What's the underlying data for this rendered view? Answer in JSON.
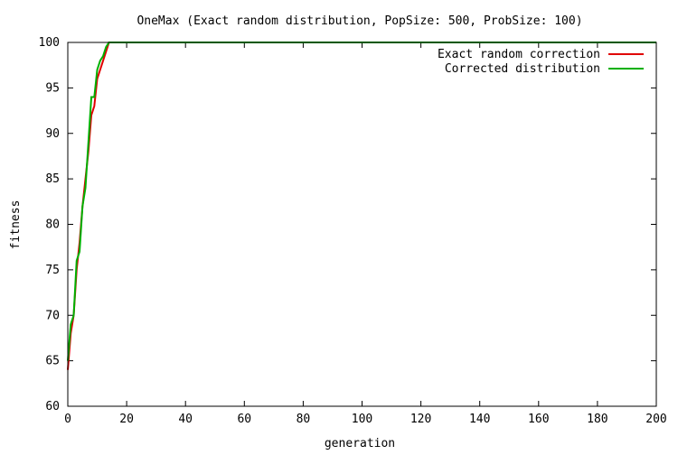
{
  "chart_data": {
    "type": "line",
    "title": "OneMax (Exact random distribution, PopSize: 500, ProbSize: 100)",
    "xlabel": "generation",
    "ylabel": "fitness",
    "xlim": [
      0,
      200
    ],
    "ylim": [
      60,
      100
    ],
    "xticks": [
      0,
      20,
      40,
      60,
      80,
      100,
      120,
      140,
      160,
      180,
      200
    ],
    "yticks": [
      60,
      65,
      70,
      75,
      80,
      85,
      90,
      95,
      100
    ],
    "grid": false,
    "legend_position": "top-right",
    "series": [
      {
        "name": "Exact random correction",
        "color": "#e00000",
        "x": [
          0,
          1,
          2,
          3,
          4,
          5,
          6,
          7,
          8,
          9,
          10,
          11,
          12,
          13,
          14,
          15,
          200
        ],
        "y": [
          64,
          68,
          70,
          75,
          78,
          82,
          85,
          88,
          92,
          93,
          96,
          97,
          98,
          99,
          100,
          100,
          100
        ]
      },
      {
        "name": "Corrected distribution",
        "color": "#00b000",
        "x": [
          0,
          1,
          2,
          3,
          4,
          5,
          6,
          7,
          8,
          9,
          10,
          11,
          12,
          13,
          14,
          15,
          200
        ],
        "y": [
          65,
          69,
          70,
          76,
          77,
          82,
          84,
          89,
          94,
          94,
          97,
          98,
          98.5,
          99.5,
          100,
          100,
          100
        ]
      }
    ]
  }
}
